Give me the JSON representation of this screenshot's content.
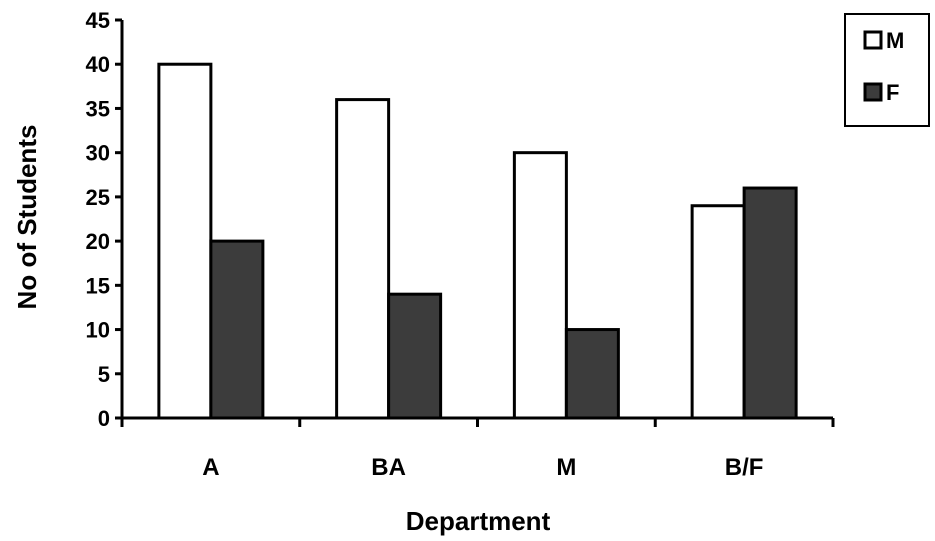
{
  "chart_data": {
    "type": "bar",
    "title": "",
    "xlabel": "Department",
    "ylabel": "No of Students",
    "categories": [
      "A",
      "BA",
      "M",
      "B/F"
    ],
    "series": [
      {
        "name": "M",
        "values": [
          40,
          36,
          30,
          24
        ],
        "color": "#ffffff"
      },
      {
        "name": "F",
        "values": [
          20,
          14,
          10,
          26
        ],
        "color": "#3c3c3c"
      }
    ],
    "ylim": [
      0,
      45
    ],
    "yticks": [
      "0",
      "5",
      "10",
      "15",
      "20",
      "25",
      "30",
      "35",
      "40",
      "45"
    ],
    "grid": false,
    "legend_position": "top-right"
  }
}
